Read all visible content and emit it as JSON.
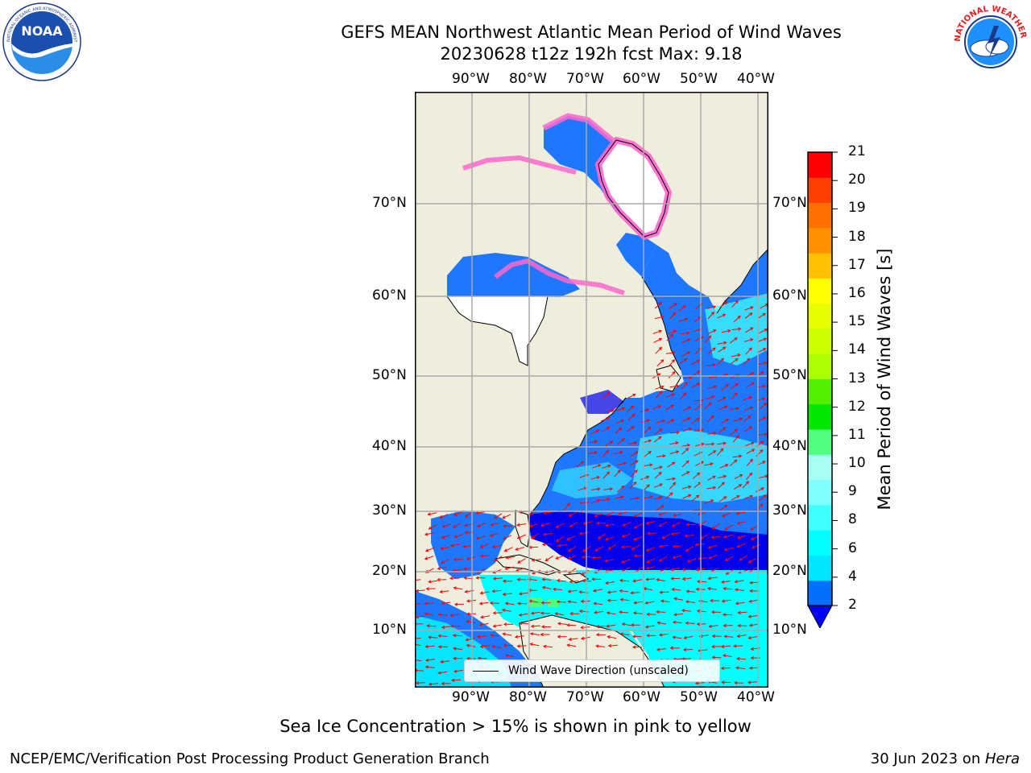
{
  "title": {
    "line1": "GEFS MEAN Northwest Atlantic Mean Period of Wind Waves",
    "line2": "20230628 t12z 192h fcst   Max: 9.18"
  },
  "logos": {
    "left": {
      "icon": "noaa-logo",
      "text": "NOAA",
      "ring_text": "NATIONAL OCEANIC AND ATMOSPHERIC ADMINISTRATION · U.S. DEPARTMENT OF COMMERCE"
    },
    "right": {
      "icon": "nws-logo",
      "ring_text": "NATIONAL WEATHER SERVICE"
    }
  },
  "map": {
    "lon_labels": [
      "90°W",
      "80°W",
      "70°W",
      "60°W",
      "50°W",
      "40°W"
    ],
    "lat_labels": [
      "70°N",
      "60°N",
      "50°N",
      "40°N",
      "30°N",
      "20°N",
      "10°N"
    ],
    "legend": "Wind Wave Direction (unscaled)",
    "colors": {
      "land": "#efeddc",
      "ice_white": "#ffffff",
      "ice_pink": "#ff66cc",
      "ice_magenta": "#ff33ff",
      "arrow": "#ff0000"
    }
  },
  "colorbar": {
    "label": "Mean Period of Wind Waves [s]",
    "ticks": [
      "21",
      "20",
      "19",
      "18",
      "17",
      "16",
      "15",
      "14",
      "13",
      "12",
      "11",
      "10",
      "9",
      "8",
      "6",
      "4",
      "2"
    ],
    "levels": [
      {
        "from": 2,
        "to": 4,
        "color": "#0070ff"
      },
      {
        "from": 4,
        "to": 5,
        "color": "#00e6ff"
      },
      {
        "from": 5,
        "to": 6,
        "color": "#00ffff"
      },
      {
        "from": 6,
        "to": 7,
        "color": "#40ffff"
      },
      {
        "from": 7,
        "to": 8,
        "color": "#80ffff"
      },
      {
        "from": 8,
        "to": 9,
        "color": "#a6fff0"
      },
      {
        "from": 9,
        "to": 10,
        "color": "#50ff80"
      },
      {
        "from": 10,
        "to": 11,
        "color": "#00e600"
      },
      {
        "from": 11,
        "to": 12,
        "color": "#50f000"
      },
      {
        "from": 12,
        "to": 13,
        "color": "#aaff00"
      },
      {
        "from": 13,
        "to": 14,
        "color": "#ccff00"
      },
      {
        "from": 14,
        "to": 15,
        "color": "#e6ff00"
      },
      {
        "from": 15,
        "to": 16,
        "color": "#ffff00"
      },
      {
        "from": 16,
        "to": 17,
        "color": "#ffc000"
      },
      {
        "from": 17,
        "to": 18,
        "color": "#ff9000"
      },
      {
        "from": 18,
        "to": 19,
        "color": "#ff7000"
      },
      {
        "from": 19,
        "to": 20,
        "color": "#ff4000"
      },
      {
        "from": 20,
        "to": 21,
        "color": "#ff0000"
      }
    ],
    "under_color": "#0000ff"
  },
  "footnote": "Sea Ice Concentration > 15% is shown in pink to yellow",
  "credit": "NCEP/EMC/Verification Post Processing Product Generation Branch",
  "date": {
    "prefix": "30 Jun 2023 on ",
    "machine": "Hera"
  }
}
